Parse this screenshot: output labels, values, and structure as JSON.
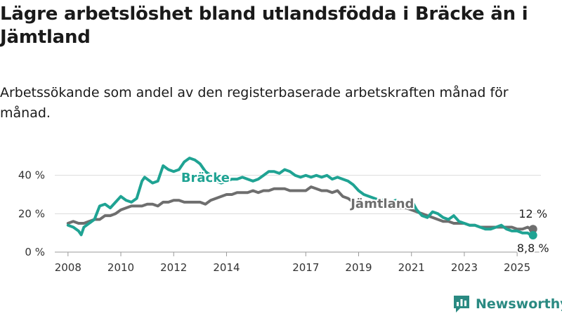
{
  "title": "Lägre arbetslöshet bland utlandsfödda i Bräcke än i Jämtland",
  "subtitle": "Arbetssökande som andel av den registerbaserade arbetskraften månad för månad.",
  "brand": {
    "name": "Newsworthy",
    "color": "#2a8a82"
  },
  "chart_data": {
    "type": "line",
    "xlim": [
      2007.5,
      2025.9
    ],
    "ylim": [
      0,
      45
    ],
    "y_ticks": [
      0,
      20,
      40
    ],
    "y_tick_labels": [
      "0 %",
      "20 %",
      "40 %"
    ],
    "x_ticks": [
      2008,
      2010,
      2012,
      2014,
      2017,
      2019,
      2021,
      2023,
      2025
    ],
    "x_tick_labels": [
      "2008",
      "2010",
      "2012",
      "2014",
      "2017",
      "2019",
      "2021",
      "2023",
      "2025"
    ],
    "grid": true,
    "series": [
      {
        "name": "Bräcke",
        "color": "#1fa393",
        "end_label": "8,8 %",
        "x": [
          2008.0,
          2008.2,
          2008.4,
          2008.5,
          2008.6,
          2008.8,
          2009.0,
          2009.2,
          2009.4,
          2009.6,
          2009.8,
          2010.0,
          2010.2,
          2010.4,
          2010.6,
          2010.8,
          2010.9,
          2011.0,
          2011.2,
          2011.4,
          2011.6,
          2011.8,
          2012.0,
          2012.2,
          2012.4,
          2012.6,
          2012.8,
          2012.9,
          2013.0,
          2013.2,
          2013.4,
          2013.6,
          2013.8,
          2014.0,
          2014.2,
          2014.4,
          2014.6,
          2014.8,
          2015.0,
          2015.2,
          2015.4,
          2015.6,
          2015.8,
          2016.0,
          2016.2,
          2016.4,
          2016.6,
          2016.8,
          2017.0,
          2017.2,
          2017.4,
          2017.6,
          2017.8,
          2018.0,
          2018.2,
          2018.4,
          2018.6,
          2018.8,
          2019.0,
          2019.2,
          2019.4,
          2019.6,
          2019.8,
          2020.0,
          2020.2,
          2020.4,
          2020.6,
          2020.8,
          2021.0,
          2021.2,
          2021.4,
          2021.6,
          2021.8,
          2022.0,
          2022.2,
          2022.4,
          2022.6,
          2022.8,
          2023.0,
          2023.2,
          2023.4,
          2023.6,
          2023.8,
          2024.0,
          2024.2,
          2024.4,
          2024.6,
          2024.8,
          2025.0,
          2025.2,
          2025.4,
          2025.5,
          2025.6
        ],
        "y": [
          14,
          13,
          11,
          9,
          13,
          15,
          17,
          24,
          25,
          23,
          26,
          29,
          27,
          26,
          28,
          37,
          39,
          38,
          36,
          37,
          45,
          43,
          42,
          43,
          47,
          49,
          48,
          47,
          46,
          42,
          40,
          37,
          36,
          37,
          38,
          38,
          39,
          38,
          37,
          38,
          40,
          42,
          42,
          41,
          43,
          42,
          40,
          39,
          40,
          39,
          40,
          39,
          40,
          38,
          39,
          38,
          37,
          35,
          32,
          30,
          29,
          28,
          27,
          27,
          26,
          27,
          25,
          26,
          27,
          22,
          19,
          18,
          21,
          20,
          18,
          17,
          19,
          16,
          15,
          14,
          14,
          13,
          12,
          12,
          13,
          14,
          12,
          11,
          11,
          10,
          10,
          9,
          8.8
        ]
      },
      {
        "name": "Jämtland",
        "color": "#6e6e6e",
        "end_label": "12 %",
        "x": [
          2008.0,
          2008.2,
          2008.4,
          2008.5,
          2008.6,
          2008.8,
          2009.0,
          2009.2,
          2009.4,
          2009.6,
          2009.8,
          2010.0,
          2010.2,
          2010.4,
          2010.6,
          2010.8,
          2011.0,
          2011.2,
          2011.4,
          2011.6,
          2011.8,
          2012.0,
          2012.2,
          2012.4,
          2012.6,
          2012.8,
          2013.0,
          2013.2,
          2013.4,
          2013.6,
          2013.8,
          2014.0,
          2014.2,
          2014.4,
          2014.6,
          2014.8,
          2015.0,
          2015.2,
          2015.4,
          2015.6,
          2015.8,
          2016.0,
          2016.2,
          2016.4,
          2016.6,
          2016.8,
          2017.0,
          2017.2,
          2017.4,
          2017.6,
          2017.8,
          2018.0,
          2018.2,
          2018.4,
          2018.6,
          2018.8,
          2019.0,
          2019.2,
          2019.4,
          2019.6,
          2019.8,
          2020.0,
          2020.2,
          2020.4,
          2020.6,
          2020.8,
          2021.0,
          2021.2,
          2021.4,
          2021.6,
          2021.8,
          2022.0,
          2022.2,
          2022.4,
          2022.6,
          2022.8,
          2023.0,
          2023.2,
          2023.4,
          2023.6,
          2023.8,
          2024.0,
          2024.2,
          2024.4,
          2024.6,
          2024.8,
          2025.0,
          2025.2,
          2025.4,
          2025.5,
          2025.6
        ],
        "y": [
          15,
          16,
          15,
          15,
          15,
          16,
          17,
          17,
          19,
          19,
          20,
          22,
          23,
          24,
          24,
          24,
          25,
          25,
          24,
          26,
          26,
          27,
          27,
          26,
          26,
          26,
          26,
          25,
          27,
          28,
          29,
          30,
          30,
          31,
          31,
          31,
          32,
          31,
          32,
          32,
          33,
          33,
          33,
          32,
          32,
          32,
          32,
          34,
          33,
          32,
          32,
          31,
          32,
          29,
          28,
          26,
          25,
          24,
          24,
          25,
          24,
          24,
          23,
          23,
          23,
          23,
          22,
          21,
          20,
          19,
          18,
          17,
          16,
          16,
          15,
          15,
          15,
          14,
          14,
          13,
          13,
          13,
          13,
          13,
          13,
          13,
          12,
          12,
          13,
          12,
          12
        ]
      }
    ]
  }
}
